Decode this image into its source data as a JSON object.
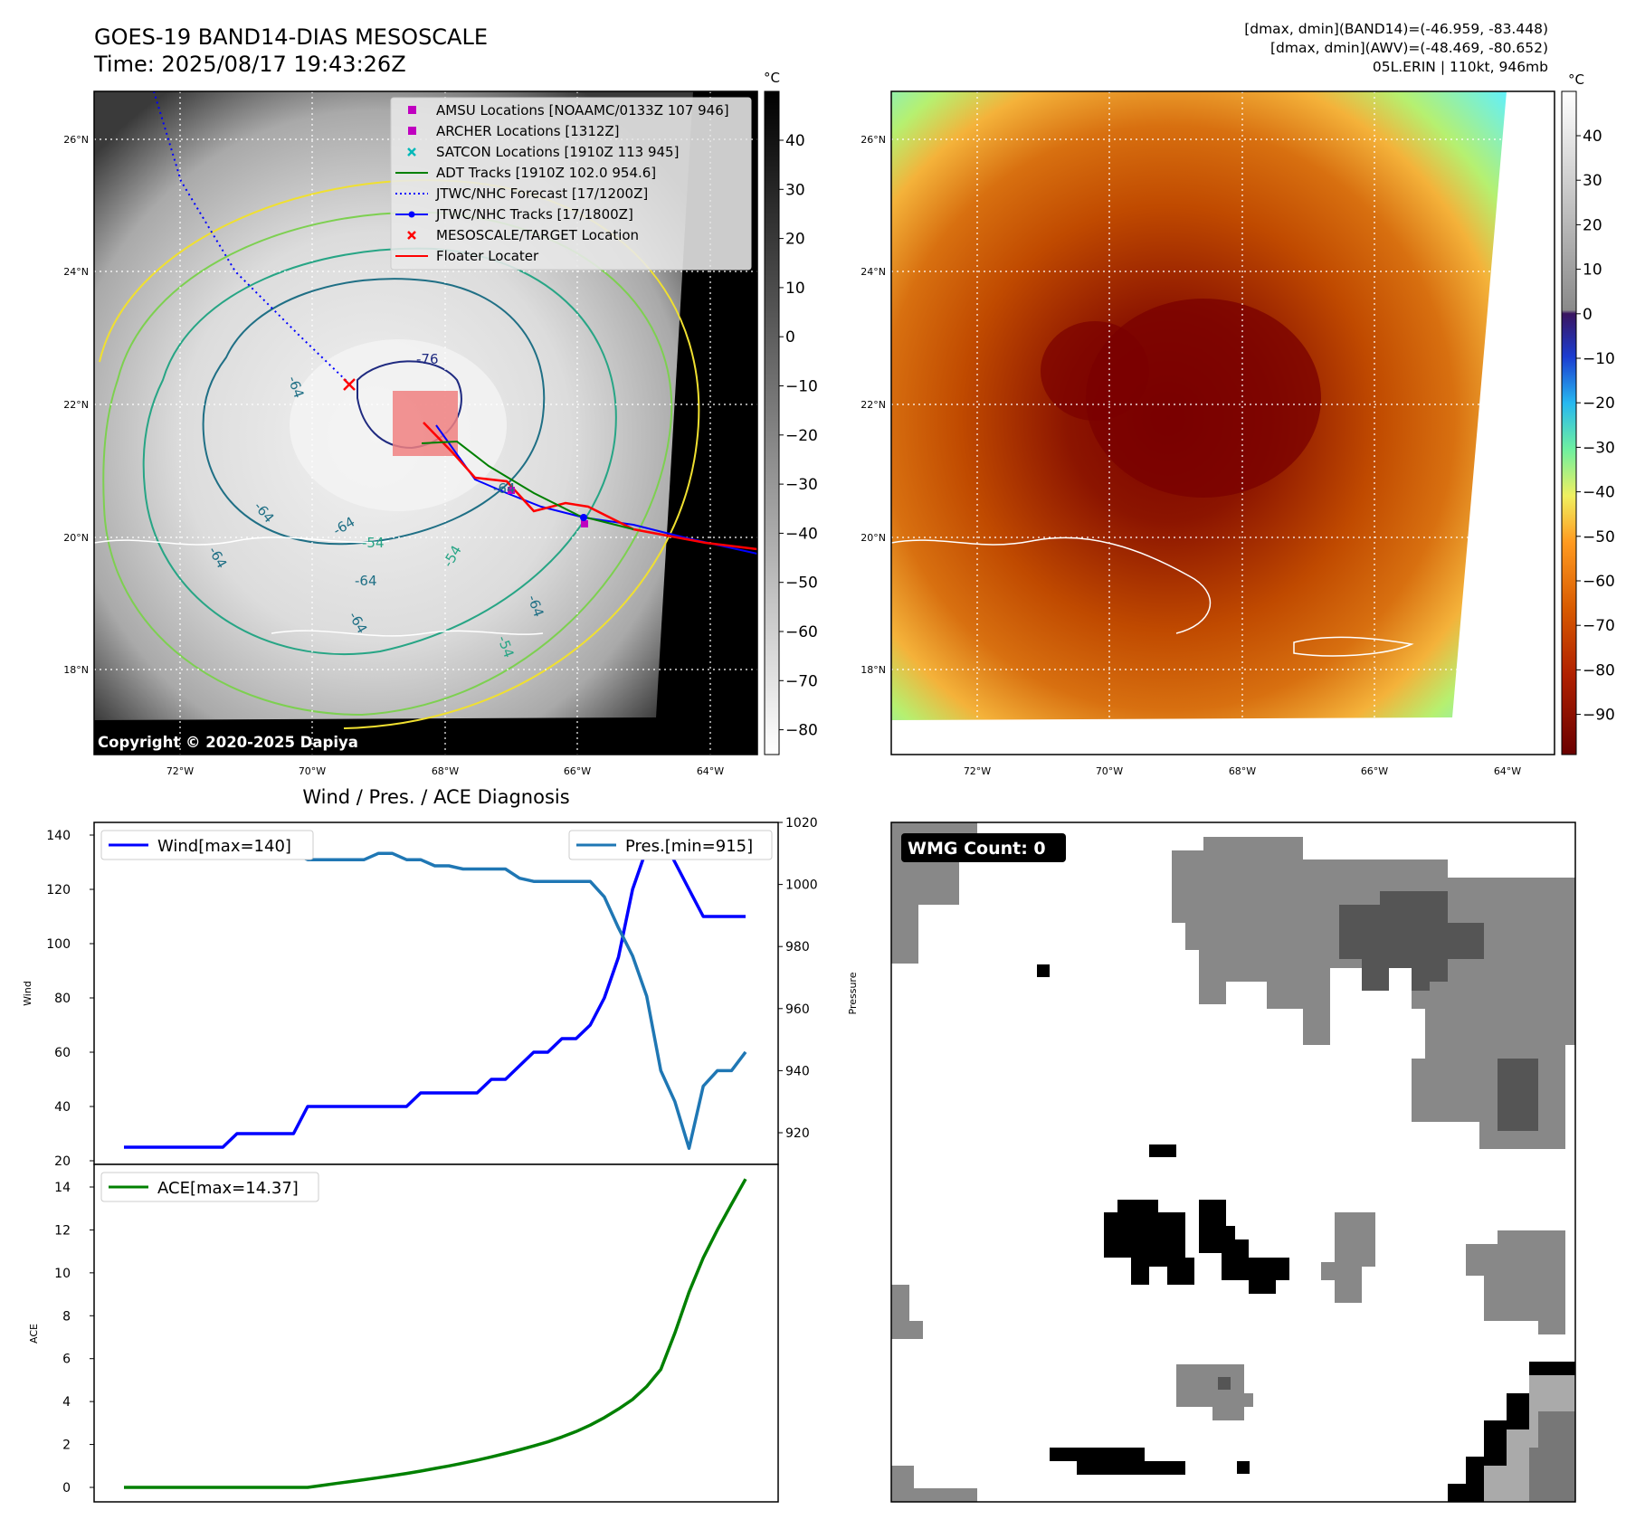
{
  "header": {
    "title_line1": "GOES-19 BAND14-DIAS MESOSCALE",
    "title_line2": "Time: 2025/08/17 19:43:26Z",
    "stats_line1": "[dmax, dmin](BAND14)=(-46.959, -83.448)",
    "stats_line2": "[dmax, dmin](AWV)=(-48.469, -80.652)",
    "stats_line3": "05L.ERIN | 110kt, 946mb"
  },
  "map_panels": {
    "lat_labels": [
      "26°N",
      "24°N",
      "22°N",
      "20°N",
      "18°N"
    ],
    "lon_labels": [
      "72°W",
      "70°W",
      "68°W",
      "66°W",
      "64°W"
    ],
    "copyright": "Copyright © 2020-2025 Dapiya",
    "contour_labels": [
      "-76",
      "-64",
      "-64",
      "-64",
      "-64",
      "-54",
      "-64",
      "-54",
      "-64",
      "-64",
      "-54",
      "-64"
    ],
    "colorbar_unit": "°C",
    "colorbar_gray_ticks": [
      "40",
      "30",
      "20",
      "10",
      "0",
      "−10",
      "−20",
      "−30",
      "−40",
      "−50",
      "−60",
      "−70",
      "−80"
    ],
    "colorbar_color_ticks": [
      "40",
      "30",
      "20",
      "10",
      "0",
      "−10",
      "−20",
      "−30",
      "−40",
      "−50",
      "−60",
      "−70",
      "−80",
      "−90"
    ],
    "legend": [
      {
        "label": "AMSU Locations [NOAAMC/0133Z 107 946]",
        "marker": "square",
        "color": "#c000c0"
      },
      {
        "label": "ARCHER Locations [1312Z]",
        "marker": "square",
        "color": "#c000c0"
      },
      {
        "label": "SATCON Locations [1910Z 113 945]",
        "marker": "x",
        "color": "#00b8b8"
      },
      {
        "label": "ADT Tracks [1910Z 102.0 954.6]",
        "marker": "line",
        "color": "#008000"
      },
      {
        "label": "JTWC/NHC Forecast [17/1200Z]",
        "marker": "dotted",
        "color": "#0000ff"
      },
      {
        "label": "JTWC/NHC Tracks [17/1800Z]",
        "marker": "dotline",
        "color": "#0000ff"
      },
      {
        "label": "MESOSCALE/TARGET Location",
        "marker": "x",
        "color": "#ff0000"
      },
      {
        "label": "Floater Locater",
        "marker": "line",
        "color": "#ff0000"
      }
    ]
  },
  "diagnosis": {
    "title": "Wind / Pres. / ACE Diagnosis",
    "wind_legend": "Wind[max=140]",
    "pres_legend": "Pres.[min=915]",
    "ace_legend": "ACE[max=14.37]",
    "wind_ylabel": "Wind",
    "pres_ylabel": "Pressure",
    "ace_ylabel": "ACE",
    "wind_ticks": [
      "140",
      "120",
      "100",
      "80",
      "60",
      "40",
      "20"
    ],
    "pres_ticks": [
      "1020",
      "1000",
      "980",
      "960",
      "940",
      "920"
    ],
    "ace_ticks": [
      "14",
      "12",
      "10",
      "8",
      "6",
      "4",
      "2",
      "0"
    ]
  },
  "wmg": {
    "label": "WMG Count: 0"
  },
  "colors": {
    "wind": "#0000ff",
    "pressure": "#1f77b4",
    "ace": "#008000",
    "floater": "#ff0000"
  },
  "chart_data": [
    {
      "type": "line",
      "title": "Wind / Pres. / ACE Diagnosis",
      "ylabel": "Wind",
      "ylim": [
        20,
        145
      ],
      "series": [
        {
          "name": "Wind[max=140]",
          "values": [
            25,
            25,
            25,
            25,
            25,
            25,
            25,
            25,
            30,
            30,
            30,
            30,
            30,
            40,
            40,
            40,
            40,
            40,
            40,
            40,
            40,
            45,
            45,
            45,
            45,
            45,
            50,
            50,
            55,
            60,
            60,
            65,
            65,
            70,
            80,
            95,
            120,
            135,
            140,
            130,
            120,
            110,
            110,
            110,
            110
          ]
        }
      ]
    },
    {
      "type": "line",
      "ylabel": "Pressure",
      "ylim": [
        910,
        1020
      ],
      "series": [
        {
          "name": "Pres.[min=915]",
          "values": [
            1015,
            1015,
            1012,
            1011,
            1010,
            1010,
            1010,
            1010,
            1010,
            1010,
            1010,
            1010,
            1010,
            1008,
            1008,
            1008,
            1008,
            1008,
            1010,
            1010,
            1008,
            1008,
            1006,
            1006,
            1005,
            1005,
            1005,
            1005,
            1002,
            1001,
            1001,
            1001,
            1001,
            1001,
            996,
            986,
            977,
            964,
            940,
            930,
            915,
            935,
            940,
            940,
            946
          ]
        }
      ]
    },
    {
      "type": "line",
      "ylabel": "ACE",
      "ylim": [
        -0.7,
        14.9
      ],
      "series": [
        {
          "name": "ACE[max=14.37]",
          "values": [
            0,
            0,
            0,
            0,
            0,
            0,
            0,
            0,
            0,
            0,
            0,
            0,
            0,
            0,
            0.09,
            0.18,
            0.27,
            0.36,
            0.45,
            0.55,
            0.65,
            0.76,
            0.88,
            1.0,
            1.13,
            1.27,
            1.42,
            1.58,
            1.75,
            1.93,
            2.12,
            2.35,
            2.6,
            2.9,
            3.25,
            3.65,
            4.1,
            4.7,
            5.5,
            7.2,
            9.1,
            10.7,
            12.0,
            13.2,
            14.37
          ]
        }
      ]
    }
  ]
}
